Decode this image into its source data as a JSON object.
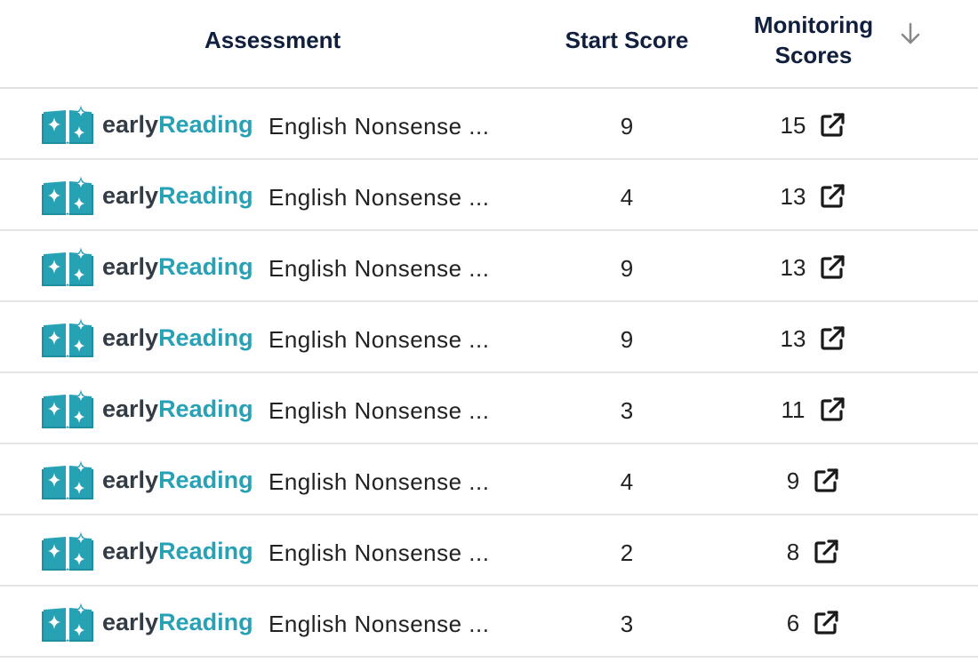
{
  "header": {
    "assessment": "Assessment",
    "start_score": "Start Score",
    "monitoring_line1": "Monitoring",
    "monitoring_line2": "Scores",
    "sort_icon": "arrow-down-icon"
  },
  "colors": {
    "brand_teal": "#27a1b4",
    "brand_dark": "#333b45",
    "header_text": "#0f1f3d"
  },
  "brand": {
    "icon": "open-book-sparkle-icon",
    "early": "early",
    "reading": "Reading"
  },
  "rows": [
    {
      "assessment": "English Nonsense ...",
      "start_score": "9",
      "monitoring_score": "15"
    },
    {
      "assessment": "English Nonsense ...",
      "start_score": "4",
      "monitoring_score": "13"
    },
    {
      "assessment": "English Nonsense ...",
      "start_score": "9",
      "monitoring_score": "13"
    },
    {
      "assessment": "English Nonsense ...",
      "start_score": "9",
      "monitoring_score": "13"
    },
    {
      "assessment": "English Nonsense ...",
      "start_score": "3",
      "monitoring_score": "11"
    },
    {
      "assessment": "English Nonsense ...",
      "start_score": "4",
      "monitoring_score": "9"
    },
    {
      "assessment": "English Nonsense ...",
      "start_score": "2",
      "monitoring_score": "8"
    },
    {
      "assessment": "English Nonsense ...",
      "start_score": "3",
      "monitoring_score": "6"
    }
  ]
}
